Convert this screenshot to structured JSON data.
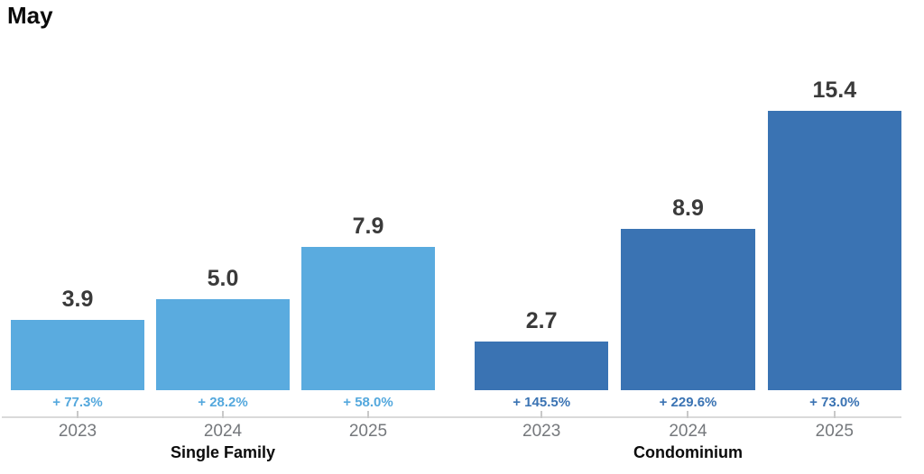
{
  "chart_data": {
    "type": "bar",
    "title": "May",
    "grid": false,
    "legend": "none",
    "ylim": [
      0,
      16.9
    ],
    "axis_line_color": "#dadada",
    "tick_color": "#c9c9c9",
    "value_label_color": "#3a3a3a",
    "year_label_color": "#75787c",
    "categories": [
      "2023",
      "2024",
      "2025"
    ],
    "groups": [
      {
        "label": "Single Family",
        "color": "#5aabdf",
        "pct_color": "#54a8dd",
        "bars": [
          {
            "year": "2023",
            "value": 3.9,
            "value_label": "3.9",
            "change_label": "+ 77.3%"
          },
          {
            "year": "2024",
            "value": 5.0,
            "value_label": "5.0",
            "change_label": "+ 28.2%"
          },
          {
            "year": "2025",
            "value": 7.9,
            "value_label": "7.9",
            "change_label": "+ 58.0%"
          }
        ]
      },
      {
        "label": "Condominium",
        "color": "#3a73b3",
        "pct_color": "#3a73b3",
        "bars": [
          {
            "year": "2023",
            "value": 2.7,
            "value_label": "2.7",
            "change_label": "+ 145.5%"
          },
          {
            "year": "2024",
            "value": 8.9,
            "value_label": "8.9",
            "change_label": "+ 229.6%"
          },
          {
            "year": "2025",
            "value": 15.4,
            "value_label": "15.4",
            "change_label": "+ 73.0%"
          }
        ]
      }
    ]
  }
}
